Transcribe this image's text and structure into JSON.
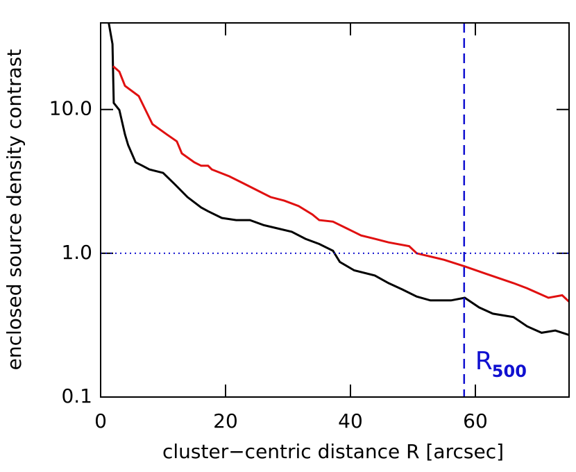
{
  "chart_data": {
    "type": "line",
    "xlabel": "cluster−centric distance R [arcsec]",
    "ylabel": "enclosed source density contrast",
    "log_y": true,
    "xlim": [
      0,
      75
    ],
    "xticks": [
      0,
      20,
      40,
      60
    ],
    "ylim": [
      0.1,
      40
    ],
    "yticks": [
      0.1,
      {
        "value": 1,
        "label": "1.0"
      },
      {
        "value": 10,
        "label": "10.0"
      }
    ],
    "hline": {
      "y": 1,
      "color": "#1010d0"
    },
    "vline": {
      "x": 58.2,
      "color": "#1010d0",
      "label": "R",
      "label_subscript": "500"
    },
    "series": [
      {
        "color": "#000000",
        "x": [
          1.3,
          1.9,
          2.1,
          3,
          3.9,
          4.4,
          5.6,
          6.7,
          7.8,
          10,
          11.7,
          13.9,
          16.1,
          17.2,
          19.4,
          21.7,
          23.9,
          26.1,
          28.3,
          30.6,
          32.8,
          35,
          37.2,
          38.3,
          40.6,
          43.9,
          46.1,
          48.3,
          50.6,
          52.8,
          56.1,
          58.3,
          60.6,
          62.8,
          66.1,
          68.3,
          70.6,
          72.8,
          75
        ],
        "values": [
          40,
          28.5,
          11.1,
          9.9,
          6.7,
          5.66,
          4.29,
          4.06,
          3.83,
          3.62,
          3.07,
          2.46,
          2.08,
          1.96,
          1.76,
          1.7,
          1.7,
          1.57,
          1.49,
          1.41,
          1.26,
          1.16,
          1.04,
          0.87,
          0.76,
          0.7,
          0.62,
          0.56,
          0.5,
          0.47,
          0.47,
          0.49,
          0.42,
          0.38,
          0.36,
          0.31,
          0.28,
          0.29,
          0.27
        ]
      },
      {
        "color": "#e01010",
        "x": [
          2,
          3,
          3.9,
          6.1,
          7.2,
          8.3,
          10.6,
          12.2,
          13,
          15,
          16.1,
          17.2,
          17.8,
          20.6,
          22.8,
          25,
          27.2,
          29.4,
          31.7,
          33.9,
          35,
          37.2,
          39.4,
          41.7,
          43.9,
          46.1,
          49.4,
          50.6,
          55,
          58.3,
          61.7,
          66.1,
          68.3,
          71.7,
          73.9,
          75
        ],
        "values": [
          20,
          18.3,
          14.6,
          12.4,
          9.9,
          7.9,
          6.7,
          6,
          4.95,
          4.29,
          4.06,
          4.06,
          3.83,
          3.43,
          3.07,
          2.75,
          2.46,
          2.32,
          2.13,
          1.86,
          1.7,
          1.66,
          1.49,
          1.33,
          1.26,
          1.19,
          1.12,
          1,
          0.9,
          0.81,
          0.72,
          0.62,
          0.57,
          0.49,
          0.51,
          0.46
        ]
      }
    ]
  }
}
